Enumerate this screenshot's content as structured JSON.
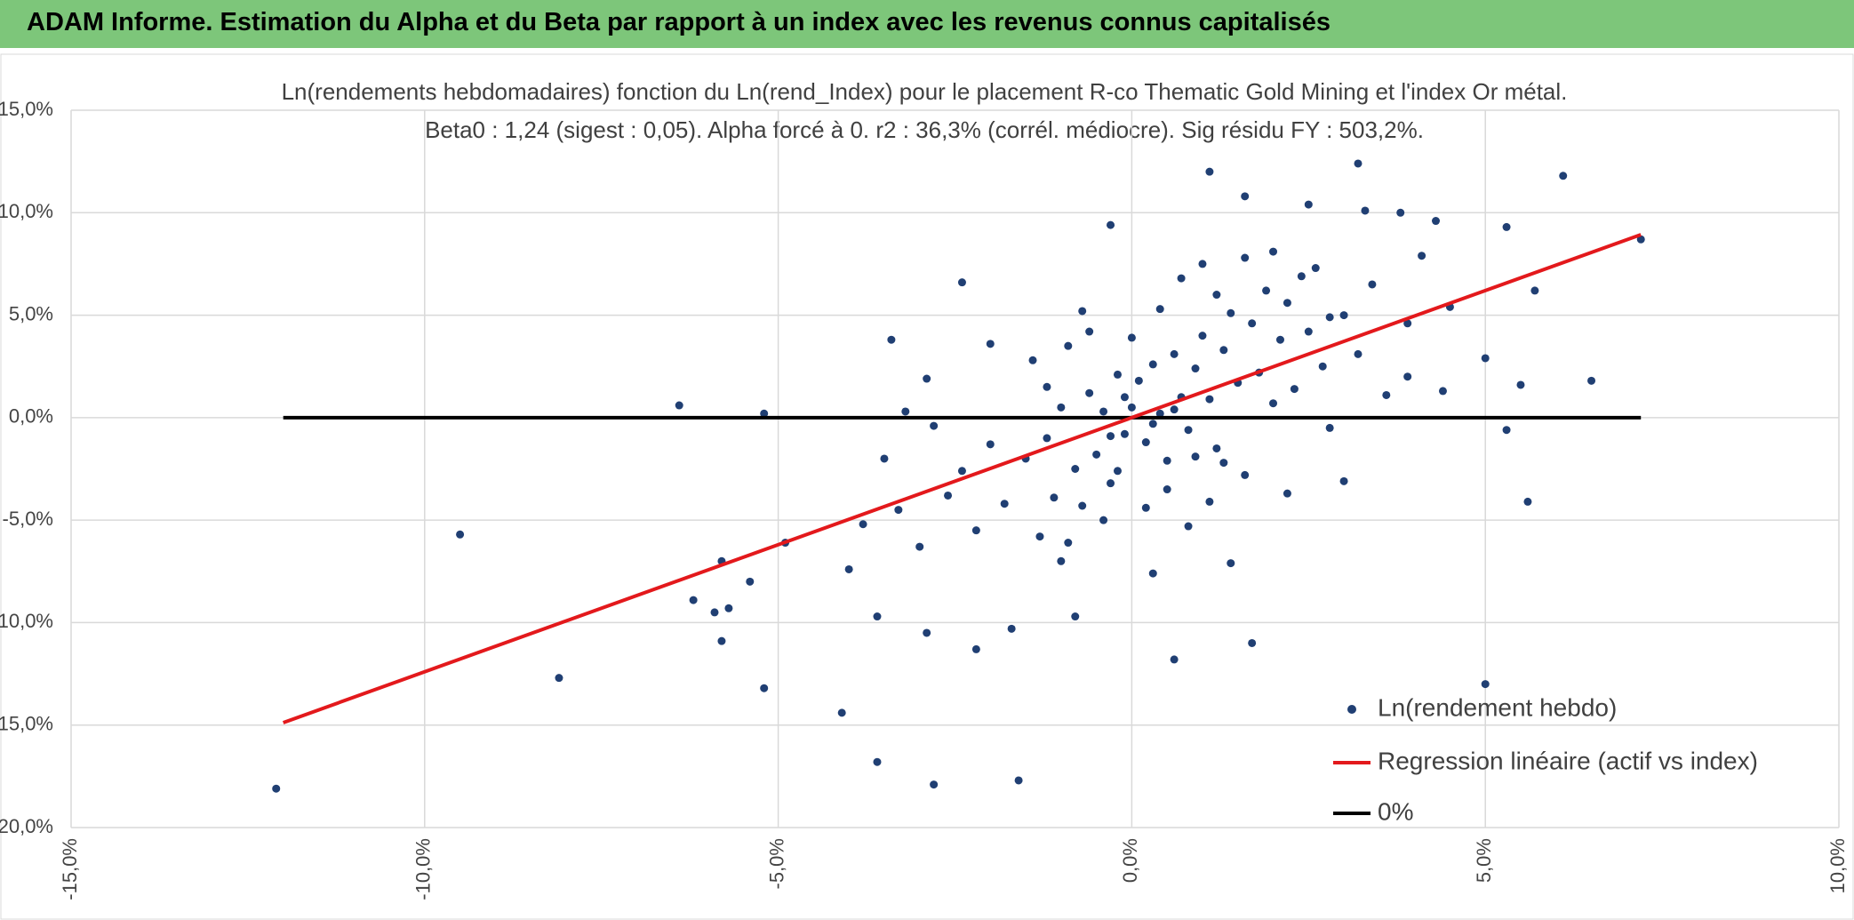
{
  "header": {
    "title": "ADAM Informe. Estimation du Alpha et du Beta par rapport à un index avec les revenus connus capitalisés"
  },
  "chart_data": {
    "type": "scatter",
    "title": "Ln(rendements hebdomadaires) fonction du Ln(rend_Index) pour le placement R-co Thematic Gold Mining et l'index Or métal.",
    "subtitle": "Beta0 : 1,24 (sigest : 0,05). Alpha forcé à 0. r2 : 36,3% (corrél. médiocre). Sig résidu FY : 503,2%.",
    "xlim": [
      -15,
      10
    ],
    "xticks": [
      {
        "value": -15,
        "label": "-15,0%"
      },
      {
        "value": -10,
        "label": "-10,0%"
      },
      {
        "value": -5,
        "label": "-5,0%"
      },
      {
        "value": 0,
        "label": "0,0%"
      },
      {
        "value": 5,
        "label": "5,0%"
      },
      {
        "value": 10,
        "label": "10,0%"
      }
    ],
    "ylim": [
      -20,
      15
    ],
    "yticks": [
      {
        "value": -20,
        "label": "-20,0%"
      },
      {
        "value": -15,
        "label": "-15,0%"
      },
      {
        "value": -10,
        "label": "-10,0%"
      },
      {
        "value": -5,
        "label": "-5,0%"
      },
      {
        "value": 0,
        "label": "0,0%"
      },
      {
        "value": 5,
        "label": "5,0%"
      },
      {
        "value": 10,
        "label": "10,0%"
      },
      {
        "value": 15,
        "label": "15,0%"
      }
    ],
    "grid": true,
    "legend": "lower right",
    "series": [
      {
        "name": "Ln(rendement hebdo)",
        "type": "scatter",
        "color": "#203f73",
        "x": [
          -12.1,
          -9.5,
          -8.1,
          -6.4,
          -5.2,
          -5.8,
          -6.2,
          -5.9,
          -5.7,
          -5.8,
          -5.4,
          -5.2,
          -4.9,
          -4.1,
          -4.0,
          -3.6,
          -3.6,
          -3.4,
          -3.2,
          -2.9,
          -2.9,
          -2.8,
          -2.4,
          -2.2,
          -2.0,
          -1.6,
          -1.7,
          -0.3,
          0.6,
          1.1,
          1.6,
          1.7,
          2.5,
          3.2,
          3.3,
          3.8,
          4.3,
          5.0,
          5.3,
          6.1,
          5.6,
          5.3,
          6.5,
          7.2,
          5.7,
          5.5,
          5.0,
          4.4,
          3.9,
          2.2,
          3.0,
          -0.7,
          -0.8,
          0.3,
          1.4,
          -1.0,
          -1.5,
          -1.2,
          -1.0,
          -0.8,
          -0.6,
          -0.5,
          -0.4,
          -0.3,
          -0.2,
          -0.1,
          0,
          0.1,
          0.2,
          0.3,
          0.4,
          0.5,
          0.6,
          0.7,
          0.8,
          0.9,
          1.0,
          1.1,
          1.2,
          1.3,
          1.4,
          1.5,
          1.6,
          1.7,
          1.8,
          1.9,
          2.0,
          2.1,
          2.2,
          2.3,
          2.5,
          2.6,
          2.7,
          2.8,
          3.0,
          3.2,
          3.4,
          3.6,
          3.9,
          4.1,
          4.5,
          -1.8,
          -2.0,
          -2.2,
          -2.4,
          -2.6,
          -2.8,
          -3.0,
          -3.3,
          -3.5,
          -3.8,
          -1.3,
          -1.1,
          -0.9,
          -0.7,
          -0.4,
          -0.2,
          0.2,
          0.5,
          0.8,
          1.1,
          1.3,
          -1.4,
          -1.2,
          -0.9,
          -0.6,
          0.0,
          0.4,
          0.7,
          1.0,
          1.2,
          1.6,
          2.0,
          2.4,
          2.8,
          0.3,
          -0.1,
          0.6,
          0.9,
          -0.3
        ],
        "values": [
          -18.1,
          -5.7,
          -12.7,
          0.6,
          0.2,
          -7.0,
          -8.9,
          -9.5,
          -9.3,
          -10.9,
          -8.0,
          -13.2,
          -6.1,
          -14.4,
          -7.4,
          -16.8,
          -9.7,
          3.8,
          0.3,
          1.9,
          -10.5,
          -17.9,
          6.6,
          -11.3,
          3.6,
          -17.7,
          -10.3,
          9.4,
          -11.8,
          12.0,
          10.8,
          -11.0,
          10.4,
          12.4,
          10.1,
          10.0,
          9.6,
          -13.0,
          9.3,
          11.8,
          -4.1,
          -0.6,
          1.8,
          8.7,
          6.2,
          1.6,
          2.9,
          1.3,
          2.0,
          -3.7,
          -3.1,
          5.2,
          -9.7,
          -7.6,
          -7.1,
          -7.0,
          -2.0,
          -1.0,
          0.5,
          -2.5,
          1.2,
          -1.8,
          0.3,
          -3.2,
          2.1,
          -0.8,
          0.5,
          1.8,
          -1.2,
          2.6,
          0.2,
          -2.1,
          3.1,
          1.0,
          -0.6,
          2.4,
          4.0,
          0.9,
          -1.5,
          3.3,
          5.1,
          1.7,
          -2.8,
          4.6,
          2.2,
          6.2,
          0.7,
          3.8,
          5.6,
          1.4,
          4.2,
          7.3,
          2.5,
          -0.5,
          5.0,
          3.1,
          6.5,
          1.1,
          4.6,
          7.9,
          5.4,
          -4.2,
          -1.3,
          -5.5,
          -2.6,
          -3.8,
          -0.4,
          -6.3,
          -4.5,
          -2.0,
          -5.2,
          -5.8,
          -3.9,
          -6.1,
          -4.3,
          -5.0,
          -2.6,
          -4.4,
          -3.5,
          -5.3,
          -4.1,
          -2.2,
          2.8,
          1.5,
          3.5,
          4.2,
          3.9,
          5.3,
          6.8,
          7.5,
          6.0,
          7.8,
          8.1,
          6.9,
          4.9,
          -0.3,
          1.0,
          0.4,
          -1.9,
          -0.9
        ]
      },
      {
        "name": "Regression linéaire (actif vs index)",
        "type": "line",
        "color": "#e3191c",
        "x": [
          -12,
          7.2
        ],
        "values": [
          -14.88,
          8.93
        ]
      },
      {
        "name": "0%",
        "type": "line",
        "color": "#000000",
        "x": [
          -12,
          7.2
        ],
        "values": [
          0,
          0
        ]
      }
    ]
  }
}
